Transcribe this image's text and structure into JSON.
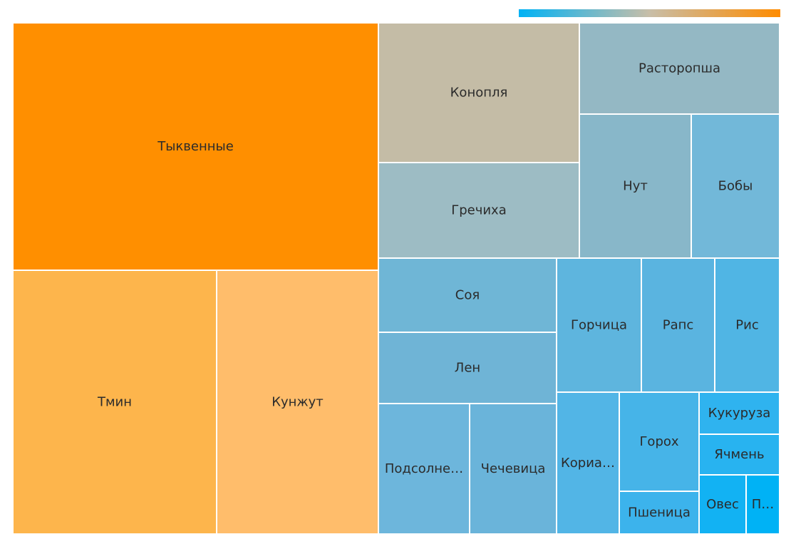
{
  "chart_data": {
    "type": "treemap",
    "color_scale": {
      "low": "#00b2f5",
      "mid": "#c8bea8",
      "high": "#ff8c00"
    },
    "items": [
      {
        "label": "Тыквенные",
        "display": "Тыквенные",
        "value": 176,
        "color": "#ff8f00"
      },
      {
        "label": "Тмин",
        "display": "Тмин",
        "value": 98,
        "color": "#fdb54c"
      },
      {
        "label": "Кунжут",
        "display": "Кунжут",
        "value": 78,
        "color": "#ffbd6b"
      },
      {
        "label": "Конопля",
        "display": "Конопля",
        "value": 55,
        "color": "#c4bca6"
      },
      {
        "label": "Гречиха",
        "display": "Гречиха",
        "value": 38,
        "color": "#9dbcc4"
      },
      {
        "label": "Расторопша",
        "display": "Расторопша",
        "value": 36,
        "color": "#94b8c4"
      },
      {
        "label": "Нут",
        "display": "Нут",
        "value": 26,
        "color": "#88b7c9"
      },
      {
        "label": "Бобы",
        "display": "Бобы",
        "value": 25,
        "color": "#72b8d9"
      },
      {
        "label": "Соя",
        "display": "Соя",
        "value": 26,
        "color": "#6fb6d6"
      },
      {
        "label": "Лен",
        "display": "Лен",
        "value": 25,
        "color": "#6fb4d6"
      },
      {
        "label": "Подсолнечник",
        "display": "Подсолне…",
        "value": 23,
        "color": "#6db6dc"
      },
      {
        "label": "Чечевица",
        "display": "Чечевица",
        "value": 20,
        "color": "#6ab4da"
      },
      {
        "label": "Горчица",
        "display": "Горчица",
        "value": 22,
        "color": "#5eb5de"
      },
      {
        "label": "Рапс",
        "display": "Рапс",
        "value": 19,
        "color": "#5ab4e0"
      },
      {
        "label": "Рис",
        "display": "Рис",
        "value": 17,
        "color": "#50b5e4"
      },
      {
        "label": "Кориандр",
        "display": "Кориа…",
        "value": 16,
        "color": "#52b5e6"
      },
      {
        "label": "Горох",
        "display": "Горох",
        "value": 13,
        "color": "#46b4e8"
      },
      {
        "label": "Пшеница",
        "display": "Пшеница",
        "value": 6,
        "color": "#3cb3ec"
      },
      {
        "label": "Кукуруза",
        "display": "Кукуруза",
        "value": 6,
        "color": "#2fb3ef"
      },
      {
        "label": "Ячмень",
        "display": "Ячмень",
        "value": 5,
        "color": "#28b3f0"
      },
      {
        "label": "Овес",
        "display": "Овес",
        "value": 4,
        "color": "#12b2f3"
      },
      {
        "label": "П…",
        "display": "П…",
        "value": 3,
        "color": "#00b2f5"
      }
    ]
  }
}
